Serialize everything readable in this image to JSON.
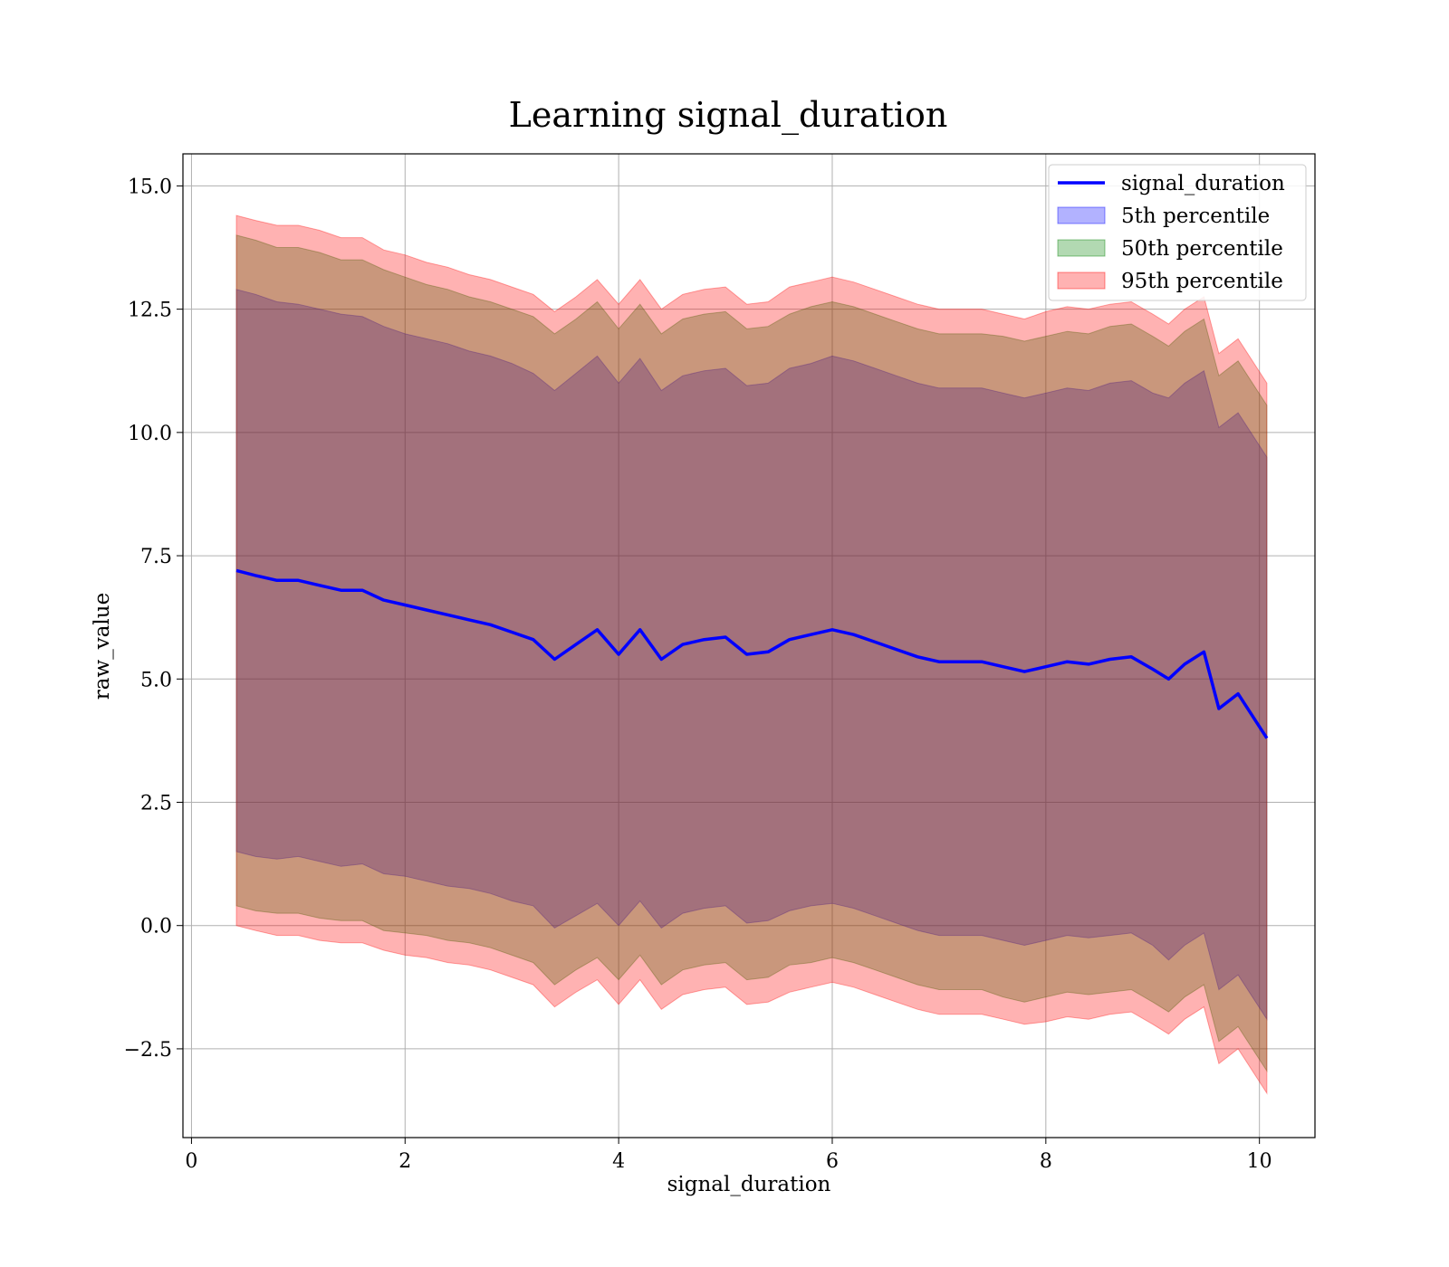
{
  "chart_data": {
    "type": "area",
    "title": "Learning signal_duration",
    "xlabel": "signal_duration",
    "ylabel": "raw_value",
    "xlim": [
      -0.08,
      10.52
    ],
    "ylim": [
      -4.3,
      15.65
    ],
    "xticks": [
      0,
      2,
      4,
      6,
      8,
      10
    ],
    "xtick_labels": [
      "0",
      "2",
      "4",
      "6",
      "8",
      "10"
    ],
    "yticks": [
      -2.5,
      0.0,
      2.5,
      5.0,
      7.5,
      10.0,
      12.5,
      15.0
    ],
    "ytick_labels": [
      "−2.5",
      "0.0",
      "2.5",
      "5.0",
      "7.5",
      "10.0",
      "12.5",
      "15.0"
    ],
    "grid": true,
    "legend_position": "top-right",
    "x": [
      0.42,
      0.6,
      0.8,
      1.0,
      1.2,
      1.4,
      1.6,
      1.8,
      2.0,
      2.2,
      2.4,
      2.6,
      2.8,
      3.0,
      3.2,
      3.4,
      3.6,
      3.8,
      4.0,
      4.2,
      4.4,
      4.6,
      4.8,
      5.0,
      5.2,
      5.4,
      5.6,
      5.8,
      6.0,
      6.2,
      6.4,
      6.6,
      6.8,
      7.0,
      7.2,
      7.4,
      7.6,
      7.8,
      8.0,
      8.2,
      8.4,
      8.6,
      8.8,
      9.0,
      9.15,
      9.3,
      9.48,
      9.62,
      9.8,
      10.07
    ],
    "series": [
      {
        "name": "signal_duration",
        "kind": "line",
        "color": "#0000ff",
        "values": [
          7.2,
          7.1,
          7.0,
          7.0,
          6.9,
          6.8,
          6.8,
          6.6,
          6.5,
          6.4,
          6.3,
          6.2,
          6.1,
          5.95,
          5.8,
          5.4,
          5.7,
          6.0,
          5.5,
          6.0,
          5.4,
          5.7,
          5.8,
          5.85,
          5.5,
          5.55,
          5.8,
          5.9,
          6.0,
          5.9,
          5.75,
          5.6,
          5.45,
          5.35,
          5.35,
          5.35,
          5.25,
          5.15,
          5.25,
          5.35,
          5.3,
          5.4,
          5.45,
          5.2,
          5.0,
          5.3,
          5.55,
          4.4,
          4.7,
          3.8
        ]
      },
      {
        "name": "5th percentile",
        "kind": "band",
        "color": "#0000ff",
        "opacity": 0.3,
        "half_width": [
          5.7,
          5.7,
          5.65,
          5.6,
          5.6,
          5.6,
          5.55,
          5.55,
          5.5,
          5.5,
          5.5,
          5.45,
          5.45,
          5.45,
          5.4,
          5.45,
          5.5,
          5.55,
          5.5,
          5.5,
          5.45,
          5.45,
          5.45,
          5.45,
          5.45,
          5.45,
          5.5,
          5.5,
          5.55,
          5.55,
          5.55,
          5.55,
          5.55,
          5.55,
          5.55,
          5.55,
          5.55,
          5.55,
          5.55,
          5.55,
          5.55,
          5.6,
          5.6,
          5.6,
          5.7,
          5.7,
          5.7,
          5.7,
          5.7,
          5.7
        ]
      },
      {
        "name": "50th percentile",
        "kind": "band",
        "color": "#008000",
        "opacity": 0.3,
        "half_width": [
          6.8,
          6.8,
          6.75,
          6.75,
          6.75,
          6.7,
          6.7,
          6.7,
          6.65,
          6.6,
          6.6,
          6.55,
          6.55,
          6.55,
          6.55,
          6.6,
          6.6,
          6.65,
          6.6,
          6.6,
          6.6,
          6.6,
          6.6,
          6.6,
          6.6,
          6.6,
          6.6,
          6.65,
          6.65,
          6.65,
          6.65,
          6.65,
          6.65,
          6.65,
          6.65,
          6.65,
          6.7,
          6.7,
          6.7,
          6.7,
          6.7,
          6.75,
          6.75,
          6.75,
          6.75,
          6.75,
          6.75,
          6.75,
          6.75,
          6.75
        ]
      },
      {
        "name": "95th percentile",
        "kind": "band",
        "color": "#ff0000",
        "opacity": 0.3,
        "half_width": [
          7.2,
          7.2,
          7.2,
          7.2,
          7.2,
          7.15,
          7.15,
          7.1,
          7.1,
          7.05,
          7.05,
          7.0,
          7.0,
          7.0,
          7.0,
          7.05,
          7.05,
          7.1,
          7.1,
          7.1,
          7.1,
          7.1,
          7.1,
          7.1,
          7.1,
          7.1,
          7.15,
          7.15,
          7.15,
          7.15,
          7.15,
          7.15,
          7.15,
          7.15,
          7.15,
          7.15,
          7.15,
          7.15,
          7.2,
          7.2,
          7.2,
          7.2,
          7.2,
          7.2,
          7.2,
          7.2,
          7.2,
          7.2,
          7.2,
          7.2
        ]
      }
    ]
  }
}
